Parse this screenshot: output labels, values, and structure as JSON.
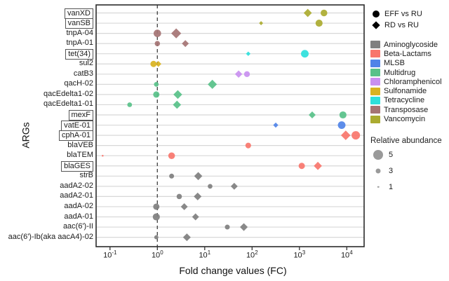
{
  "figure": {
    "xlabel": "Fold change values (FC)",
    "ylabel": "ARGs"
  },
  "legend": {
    "shapes": [
      {
        "shape": "circle",
        "label": "EFF vs RU"
      },
      {
        "shape": "diamond",
        "label": "RD vs RU"
      }
    ],
    "classes": [
      {
        "label": "Aminoglycoside",
        "color": "#7f7f7f"
      },
      {
        "label": "Beta-Lactams",
        "color": "#F8766D"
      },
      {
        "label": "MLSB",
        "color": "#4F83E8"
      },
      {
        "label": "Multidrug",
        "color": "#58C189"
      },
      {
        "label": "Chloramphenicol",
        "color": "#C990F0"
      },
      {
        "label": "Sulfonamide",
        "color": "#D9B321"
      },
      {
        "label": "Tetracycline",
        "color": "#2EE0DC"
      },
      {
        "label": "Transposase",
        "color": "#A57474"
      },
      {
        "label": "Vancomycin",
        "color": "#ABAB30"
      }
    ],
    "size": {
      "title": "Relative abundance",
      "entries": [
        {
          "value": "5",
          "diameter": 14
        },
        {
          "value": "3",
          "diameter": 7
        },
        {
          "value": "1",
          "diameter": 2.5
        }
      ]
    }
  },
  "chart_data": {
    "type": "scatter",
    "title": "",
    "xlabel": "Fold change values (FC)",
    "ylabel": "ARGs",
    "x_scale": "log10",
    "x_range": [
      0.05,
      23000
    ],
    "x_ticks": [
      {
        "base": "10",
        "exp": "-1",
        "value": 0.1
      },
      {
        "base": "10",
        "exp": "0",
        "value": 1
      },
      {
        "base": "10",
        "exp": "1",
        "value": 10
      },
      {
        "base": "10",
        "exp": "2",
        "value": 100
      },
      {
        "base": "10",
        "exp": "3",
        "value": 1000
      },
      {
        "base": "10",
        "exp": "4",
        "value": 10000
      }
    ],
    "reference_line_x": 1,
    "grid": "horizontal",
    "legend_position": "right",
    "shape_meaning": {
      "circle": "EFF vs RU",
      "diamond": "RD vs RU"
    },
    "size_meaning": "Relative abundance",
    "rows": [
      {
        "arg": "vanXD",
        "boxed": true,
        "class": "Vancomycin",
        "points": [
          {
            "shape": "diamond",
            "comparison": "RD vs RU",
            "fc": 1500,
            "abundance": 3.6
          },
          {
            "shape": "circle",
            "comparison": "EFF vs RU",
            "fc": 3300,
            "abundance": 3.4
          }
        ]
      },
      {
        "arg": "vanSB",
        "boxed": true,
        "class": "Vancomycin",
        "points": [
          {
            "shape": "diamond",
            "comparison": "RD vs RU",
            "fc": 155,
            "abundance": 1.6
          },
          {
            "shape": "circle",
            "comparison": "EFF vs RU",
            "fc": 2600,
            "abundance": 3.6
          }
        ]
      },
      {
        "arg": "tnpA-04",
        "boxed": false,
        "class": "Transposase",
        "points": [
          {
            "shape": "circle",
            "comparison": "EFF vs RU",
            "fc": 1.0,
            "abundance": 3.8
          },
          {
            "shape": "diamond",
            "comparison": "RD vs RU",
            "fc": 2.5,
            "abundance": 4.5
          }
        ]
      },
      {
        "arg": "tnpA-01",
        "boxed": false,
        "class": "Transposase",
        "points": [
          {
            "shape": "circle",
            "comparison": "EFF vs RU",
            "fc": 1.0,
            "abundance": 2.7
          },
          {
            "shape": "diamond",
            "comparison": "RD vs RU",
            "fc": 3.9,
            "abundance": 3.0
          }
        ]
      },
      {
        "arg": "tet(34)",
        "boxed": true,
        "class": "Tetracycline",
        "points": [
          {
            "shape": "diamond",
            "comparison": "RD vs RU",
            "fc": 83,
            "abundance": 1.8
          },
          {
            "shape": "circle",
            "comparison": "EFF vs RU",
            "fc": 1300,
            "abundance": 3.9
          }
        ]
      },
      {
        "arg": "sul2",
        "boxed": false,
        "class": "Sulfonamide",
        "points": [
          {
            "shape": "circle",
            "comparison": "EFF vs RU",
            "fc": 0.83,
            "abundance": 3.2
          },
          {
            "shape": "diamond",
            "comparison": "RD vs RU",
            "fc": 1.05,
            "abundance": 2.5
          }
        ]
      },
      {
        "arg": "catB3",
        "boxed": false,
        "class": "Chloramphenicol",
        "points": [
          {
            "shape": "diamond",
            "comparison": "RD vs RU",
            "fc": 52,
            "abundance": 3.2
          },
          {
            "shape": "circle",
            "comparison": "EFF vs RU",
            "fc": 78,
            "abundance": 3.0
          }
        ]
      },
      {
        "arg": "qacH-02",
        "boxed": false,
        "class": "Multidrug",
        "points": [
          {
            "shape": "circle",
            "comparison": "EFF vs RU",
            "fc": 0.95,
            "abundance": 2.4
          },
          {
            "shape": "diamond",
            "comparison": "RD vs RU",
            "fc": 14.5,
            "abundance": 4.1
          }
        ]
      },
      {
        "arg": "qacEdelta1-02",
        "boxed": false,
        "class": "Multidrug",
        "points": [
          {
            "shape": "circle",
            "comparison": "EFF vs RU",
            "fc": 0.95,
            "abundance": 3.2
          },
          {
            "shape": "diamond",
            "comparison": "RD vs RU",
            "fc": 2.7,
            "abundance": 3.9
          }
        ]
      },
      {
        "arg": "qacEdelta1-01",
        "boxed": false,
        "class": "Multidrug",
        "points": [
          {
            "shape": "circle",
            "comparison": "EFF vs RU",
            "fc": 0.26,
            "abundance": 2.4
          },
          {
            "shape": "diamond",
            "comparison": "RD vs RU",
            "fc": 2.6,
            "abundance": 3.6
          }
        ]
      },
      {
        "arg": "mexF",
        "boxed": true,
        "class": "Multidrug",
        "points": [
          {
            "shape": "diamond",
            "comparison": "RD vs RU",
            "fc": 1860,
            "abundance": 3.0
          },
          {
            "shape": "circle",
            "comparison": "EFF vs RU",
            "fc": 8300,
            "abundance": 3.6
          }
        ]
      },
      {
        "arg": "vatE-01",
        "boxed": true,
        "class": "MLSB",
        "points": [
          {
            "shape": "diamond",
            "comparison": "RD vs RU",
            "fc": 316,
            "abundance": 2.1
          },
          {
            "shape": "circle",
            "comparison": "EFF vs RU",
            "fc": 7800,
            "abundance": 3.9
          }
        ]
      },
      {
        "arg": "cphA-01",
        "boxed": true,
        "class": "Beta-Lactams",
        "points": [
          {
            "shape": "diamond",
            "comparison": "RD vs RU",
            "fc": 9500,
            "abundance": 4.3
          },
          {
            "shape": "circle",
            "comparison": "EFF vs RU",
            "fc": 15500,
            "abundance": 4.3
          }
        ]
      },
      {
        "arg": "blaVEB",
        "boxed": false,
        "class": "Beta-Lactams",
        "points": [
          {
            "shape": "circle",
            "comparison": "EFF vs RU",
            "fc": 83,
            "abundance": 2.9
          }
        ]
      },
      {
        "arg": "blaTEM",
        "boxed": false,
        "class": "Beta-Lactams",
        "points": [
          {
            "shape": "circle",
            "comparison": "EFF vs RU",
            "fc": 0.07,
            "abundance": 0.9
          },
          {
            "shape": "circle",
            "comparison": "EFF vs RU",
            "fc": 2.0,
            "abundance": 3.4
          }
        ]
      },
      {
        "arg": "blaGES",
        "boxed": true,
        "class": "Beta-Lactams",
        "points": [
          {
            "shape": "circle",
            "comparison": "EFF vs RU",
            "fc": 1120,
            "abundance": 3.2
          },
          {
            "shape": "diamond",
            "comparison": "RD vs RU",
            "fc": 2450,
            "abundance": 3.6
          }
        ]
      },
      {
        "arg": "strB",
        "boxed": false,
        "class": "Aminoglycoside",
        "points": [
          {
            "shape": "circle",
            "comparison": "EFF vs RU",
            "fc": 2.0,
            "abundance": 2.5
          },
          {
            "shape": "diamond",
            "comparison": "RD vs RU",
            "fc": 7.3,
            "abundance": 3.6
          }
        ]
      },
      {
        "arg": "aadA2-02",
        "boxed": false,
        "class": "Aminoglycoside",
        "points": [
          {
            "shape": "circle",
            "comparison": "EFF vs RU",
            "fc": 13,
            "abundance": 2.4
          },
          {
            "shape": "diamond",
            "comparison": "RD vs RU",
            "fc": 42,
            "abundance": 3.0
          }
        ]
      },
      {
        "arg": "aadA2-01",
        "boxed": false,
        "class": "Aminoglycoside",
        "points": [
          {
            "shape": "circle",
            "comparison": "EFF vs RU",
            "fc": 2.9,
            "abundance": 2.7
          },
          {
            "shape": "diamond",
            "comparison": "RD vs RU",
            "fc": 7.1,
            "abundance": 3.4
          }
        ]
      },
      {
        "arg": "aadA-02",
        "boxed": false,
        "class": "Aminoglycoside",
        "points": [
          {
            "shape": "circle",
            "comparison": "EFF vs RU",
            "fc": 0.95,
            "abundance": 3.2
          },
          {
            "shape": "diamond",
            "comparison": "RD vs RU",
            "fc": 3.7,
            "abundance": 3.0
          }
        ]
      },
      {
        "arg": "aadA-01",
        "boxed": false,
        "class": "Aminoglycoside",
        "points": [
          {
            "shape": "circle",
            "comparison": "EFF vs RU",
            "fc": 0.95,
            "abundance": 3.6
          },
          {
            "shape": "diamond",
            "comparison": "RD vs RU",
            "fc": 6.4,
            "abundance": 3.0
          }
        ]
      },
      {
        "arg": "aac(6')-II",
        "boxed": false,
        "class": "Aminoglycoside",
        "points": [
          {
            "shape": "circle",
            "comparison": "EFF vs RU",
            "fc": 30,
            "abundance": 2.5
          },
          {
            "shape": "diamond",
            "comparison": "RD vs RU",
            "fc": 67,
            "abundance": 3.4
          }
        ]
      },
      {
        "arg": "aac(6')-Ib(aka aacA4)-02",
        "boxed": false,
        "class": "Aminoglycoside",
        "points": [
          {
            "shape": "circle",
            "comparison": "EFF vs RU",
            "fc": 0.95,
            "abundance": 2.1
          },
          {
            "shape": "diamond",
            "comparison": "RD vs RU",
            "fc": 4.2,
            "abundance": 3.4
          }
        ]
      }
    ]
  }
}
